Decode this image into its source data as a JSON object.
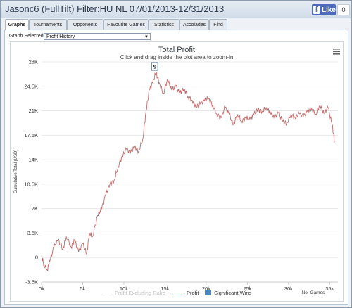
{
  "window": {
    "title": "Jasonc6 (FullTilt) Filter:HU NL 07/01/2013-12/31/2013",
    "like_label": "Like",
    "like_count": "0"
  },
  "tabs": [
    "Graphs",
    "Tournaments",
    "Opponents",
    "Favourite Games",
    "Statistics",
    "Accolades",
    "Find"
  ],
  "graph_selector": {
    "label": "Graph Selected:",
    "value": "Profit History"
  },
  "chart_data": {
    "type": "line",
    "title": "Total Profit",
    "subtitle": "Click and drag inside the plot area to zoom-in",
    "ylabel": "Cumulative Total (USD)",
    "xlabel": "No. Games",
    "ylim": [
      -3500,
      28000
    ],
    "xlim": [
      0,
      36000
    ],
    "y_ticks": [
      "-3.5K",
      "0",
      "3.5K",
      "7K",
      "10.5K",
      "14K",
      "17.5K",
      "21K",
      "24.5K",
      "28K"
    ],
    "x_ticks": [
      "0k",
      "5k",
      "10k",
      "15k",
      "20k",
      "25k",
      "30k",
      "35k"
    ],
    "legend": [
      "Profit Excluding Rake",
      "Profit",
      "Significant Wins"
    ],
    "legend_position": "bottom",
    "flag_label": "S",
    "colors": {
      "profit": "#c26a6a",
      "excl_rake": "#cfcfcf",
      "significant": "#4c86c6"
    },
    "series": [
      {
        "name": "Profit",
        "x": [
          0,
          300,
          700,
          1000,
          1500,
          2000,
          2600,
          3000,
          3600,
          4000,
          4500,
          5000,
          5500,
          5800,
          6200,
          6800,
          7300,
          7800,
          8300,
          8800,
          9300,
          9800,
          10300,
          10800,
          11300,
          11800,
          12300,
          12700,
          13100,
          13500,
          13900,
          14300,
          14800,
          15300,
          15800,
          16300,
          16800,
          17300,
          17800,
          18300,
          18800,
          19300,
          19800,
          20300,
          20800,
          21300,
          21800,
          22300,
          22800,
          23300,
          23800,
          24300,
          24800,
          25300,
          25800,
          26300,
          26800,
          27300,
          27800,
          28300,
          28800,
          29300,
          29800,
          30300,
          30800,
          31300,
          31800,
          32300,
          32800,
          33300,
          33800,
          34300,
          34800,
          35300,
          35600
        ],
        "y": [
          200,
          -1000,
          -1800,
          -500,
          1500,
          2500,
          1200,
          3000,
          1500,
          2500,
          800,
          2000,
          500,
          3500,
          3000,
          6000,
          7000,
          9000,
          10500,
          11000,
          13000,
          14500,
          15500,
          15000,
          15800,
          15200,
          17000,
          21000,
          24000,
          25000,
          26500,
          25000,
          23500,
          25500,
          24000,
          24500,
          23500,
          24200,
          23000,
          22500,
          21500,
          22000,
          22500,
          22800,
          21800,
          20500,
          20000,
          21500,
          20500,
          19000,
          20500,
          19500,
          20000,
          19800,
          20500,
          21200,
          20900,
          21500,
          20800,
          20000,
          20700,
          19500,
          19200,
          20500,
          20000,
          20600,
          20200,
          21000,
          21300,
          20500,
          21800,
          20600,
          21500,
          19000,
          16500
        ]
      }
    ]
  }
}
